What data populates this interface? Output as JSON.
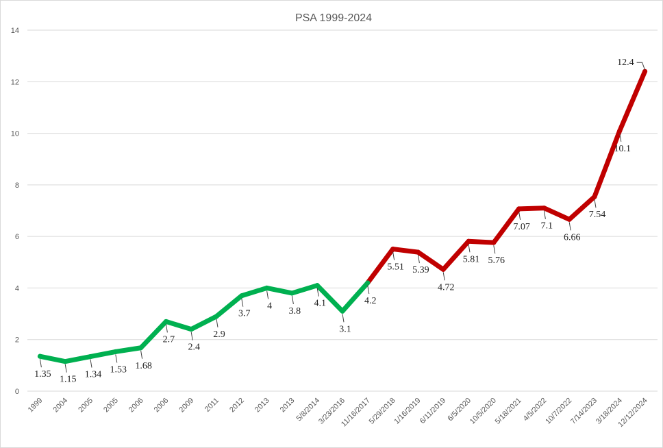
{
  "chart_data": {
    "type": "line",
    "title": "PSA 1999-2024",
    "xlabel": "",
    "ylabel": "",
    "ylim": [
      0,
      14
    ],
    "yticks": [
      0,
      2,
      4,
      6,
      8,
      10,
      12,
      14
    ],
    "grid": true,
    "legend": "none",
    "categories": [
      "1999",
      "2004",
      "2005",
      "2005",
      "2006",
      "2006",
      "2009",
      "2011",
      "2012",
      "2013",
      "2013",
      "5/8/2014",
      "3/23/2016",
      "11/16/2017",
      "5/29/2018",
      "1/16/2019",
      "6/11/2019",
      "6/5/2020",
      "10/5/2020",
      "5/18/2021",
      "4/5/2022",
      "10/7/2022",
      "7/14/2023",
      "3/18/2024",
      "12/12/2024"
    ],
    "values": [
      1.35,
      1.15,
      1.34,
      1.53,
      1.68,
      2.7,
      2.4,
      2.9,
      3.7,
      4,
      3.8,
      4.1,
      3.1,
      4.2,
      5.51,
      5.39,
      4.72,
      5.81,
      5.76,
      7.07,
      7.1,
      6.66,
      7.54,
      10.1,
      12.4
    ],
    "data_labels": [
      "1.35",
      "1.15",
      "1.34",
      "1.53",
      "1.68",
      "2.7",
      "2.4",
      "2.9",
      "3.7",
      "4",
      "3.8",
      "4.1",
      "3.1",
      "4.2",
      "5.51",
      "5.39",
      "4.72",
      "5.81",
      "5.76",
      "7.07",
      "7.1",
      "6.66",
      "7.54",
      "10.1",
      "12.4"
    ],
    "segment_colors": {
      "green": "#00b050",
      "red": "#c00000"
    },
    "color_change_index": 13
  }
}
